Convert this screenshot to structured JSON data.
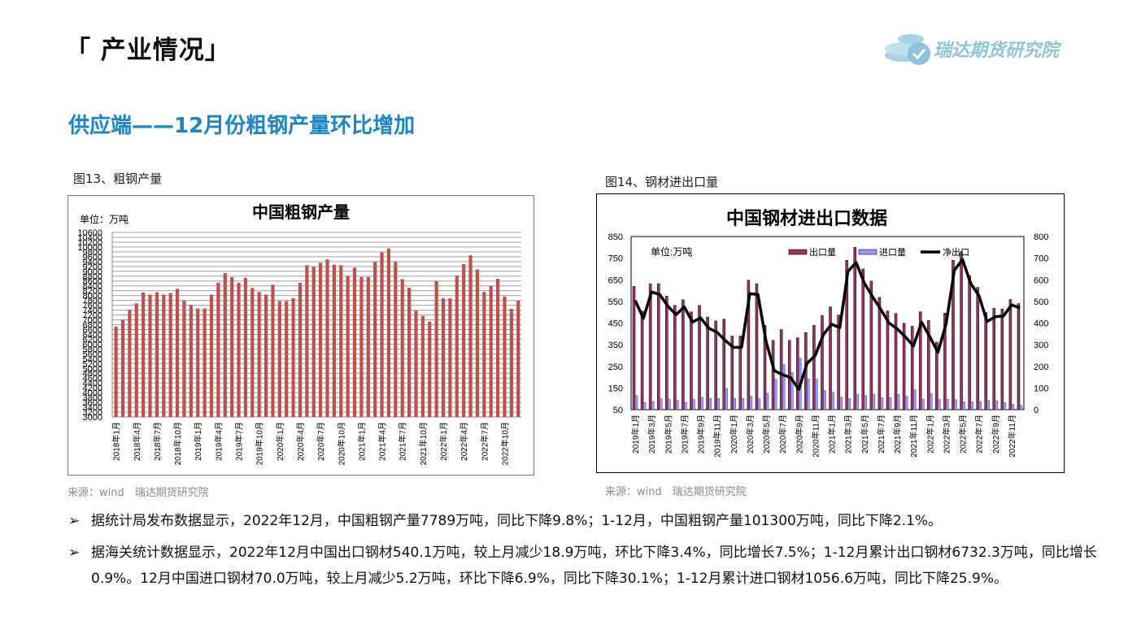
{
  "header": {
    "title": "「 产业情况」",
    "logo_text": "瑞达期货研究院",
    "subtitle": "供应端——12月份粗钢产量环比增加"
  },
  "figures": [
    {
      "caption": "图13、粗钢产量",
      "source": "来源：wind　瑞达期货研究院"
    },
    {
      "caption": "图14、钢材进出口量",
      "source": "来源：wind　瑞达期货研究院"
    }
  ],
  "bullets": [
    {
      "icon": "arrow-bullet-icon",
      "text": "据统计局发布数据显示，2022年12月，中国粗钢产量7789万吨，同比下降9.8%；1-12月，中国粗钢产量101300万吨，同比下降2.1%。"
    },
    {
      "icon": "arrow-bullet-icon",
      "text": "据海关统计数据显示，2022年12月中国出口钢材540.1万吨，较上月减少18.9万吨，环比下降3.4%，同比增长7.5%；1-12月累计出口钢材6732.3万吨，同比增长0.9%。12月中国进口钢材70.0万吨，较上月减少5.2万吨，环比下降6.9%，同比下降30.1%；1-12月累计进口钢材1056.6万吨，同比下降25.9%。"
    }
  ],
  "chart_data": [
    {
      "type": "bar",
      "title": "中国粗钢产量",
      "unit_label": "单位：万吨",
      "ylim": [
        3000,
        10600
      ],
      "ytick_step": 200,
      "color": "#c0504d",
      "categories_start": "2018-01",
      "tick_label_every": 3,
      "tick_labels": [
        "2018年1月",
        "2018年4月",
        "2018年7月",
        "2018年10月",
        "2019年1月",
        "2019年4月",
        "2019年7月",
        "2019年10月",
        "2020年1月",
        "2020年4月",
        "2020年7月",
        "2020年10月",
        "2021年1月",
        "2021年4月",
        "2021年7月",
        "2021年10月",
        "2022年1月",
        "2022年4月",
        "2022年7月",
        "2022年10月"
      ],
      "values": [
        6720,
        7000,
        7420,
        7680,
        8130,
        8040,
        8140,
        8040,
        8100,
        8280,
        7790,
        7620,
        7470,
        7470,
        8040,
        8530,
        8930,
        8760,
        8530,
        8730,
        8310,
        8150,
        8040,
        8450,
        7770,
        7770,
        7890,
        8530,
        9250,
        9200,
        9350,
        9490,
        9270,
        9250,
        8800,
        9150,
        8770,
        8770,
        9390,
        9780,
        9940,
        9390,
        8680,
        8320,
        7380,
        7160,
        6930,
        8600,
        7890,
        7890,
        8820,
        9300,
        9660,
        9070,
        8150,
        8400,
        8690,
        7960,
        7450,
        7789
      ]
    },
    {
      "type": "bar+line",
      "title": "中国钢材进出口数据",
      "unit_label": "单位:万吨",
      "ylim_left": [
        50,
        850
      ],
      "ylim_right": [
        0,
        800
      ],
      "ytick_step": 100,
      "tick_labels": [
        "2019年1月",
        "2019年3月",
        "2019年5月",
        "2019年7月",
        "2019年9月",
        "2019年11月",
        "2020年1月",
        "2020年3月",
        "2020年5月",
        "2020年7月",
        "2020年9月",
        "2020年11月",
        "2021年1月",
        "2021年3月",
        "2021年5月",
        "2021年7月",
        "2021年9月",
        "2021年11月",
        "2022年1月",
        "2022年3月",
        "2022年5月",
        "2022年7月",
        "2022年9月",
        "2022年11月"
      ],
      "legend_position": "top-right",
      "series": [
        {
          "name": "出口量",
          "axis": "left",
          "kind": "bar",
          "color": "#993366",
          "values": [
            620,
            505,
            632,
            632,
            575,
            532,
            558,
            502,
            532,
            478,
            460,
            468,
            390,
            390,
            648,
            632,
            440,
            370,
            420,
            370,
            382,
            406,
            440,
            485,
            525,
            487,
            740,
            800,
            700,
            644,
            569,
            506,
            494,
            449,
            436,
            502,
            462,
            362,
            496,
            740,
            780,
            669,
            615,
            499,
            519,
            515,
            559,
            540
          ]
        },
        {
          "name": "进口量",
          "axis": "left",
          "kind": "bar",
          "color": "#9999ff",
          "values": [
            115,
            83,
            88,
            100,
            97,
            93,
            83,
            97,
            108,
            102,
            102,
            148,
            102,
            102,
            112,
            100,
            126,
            190,
            258,
            222,
            288,
            192,
            190,
            138,
            130,
            108,
            101,
            120,
            115,
            122,
            105,
            105,
            120,
            112,
            142,
            98,
            125,
            97,
            98,
            96,
            86,
            86,
            88,
            92,
            90,
            82,
            75,
            70
          ]
        },
        {
          "name": "净出口",
          "axis": "right",
          "kind": "line",
          "color": "#000000",
          "values": [
            505,
            422,
            544,
            532,
            478,
            439,
            475,
            405,
            424,
            376,
            358,
            320,
            288,
            288,
            536,
            532,
            314,
            180,
            162,
            148,
            94,
            214,
            250,
            347,
            395,
            379,
            639,
            680,
            585,
            522,
            464,
            401,
            374,
            337,
            294,
            404,
            337,
            265,
            398,
            644,
            694,
            583,
            527,
            407,
            429,
            433,
            484,
            470
          ]
        }
      ]
    }
  ]
}
